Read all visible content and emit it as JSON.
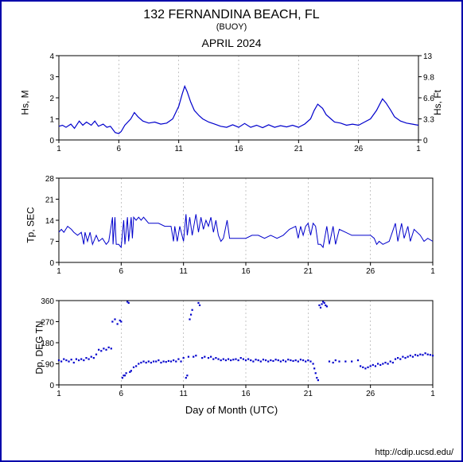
{
  "title_main": "132 FERNANDINA BEACH, FL",
  "title_sub": "(BUOY)",
  "month_title": "APRIL 2024",
  "xlabel": "Day of Month (UTC)",
  "credit": "http://cdip.ucsd.edu/",
  "chart_bg": "#ffffff",
  "axis_color": "#000000",
  "grid_color": "#a0a0a0",
  "series_color": "#0000cc",
  "xlim": [
    1,
    31
  ],
  "xticks": [
    1,
    6,
    11,
    16,
    21,
    26,
    31
  ],
  "xtick_labels": [
    "1",
    "6",
    "11",
    "16",
    "21",
    "26",
    "1"
  ],
  "grid_dash": "2,3",
  "panel1": {
    "type": "line",
    "ylabel": "Hs, M",
    "ylabel_right": "Hs, Ft",
    "ylim": [
      0,
      4
    ],
    "yticks": [
      0,
      1,
      2,
      3,
      4
    ],
    "yticks_right": [
      0,
      3.3,
      6.6,
      9.8,
      13
    ],
    "line_width": 1.2,
    "data": [
      [
        1.0,
        0.65
      ],
      [
        1.3,
        0.7
      ],
      [
        1.6,
        0.6
      ],
      [
        2.0,
        0.75
      ],
      [
        2.3,
        0.55
      ],
      [
        2.7,
        0.9
      ],
      [
        3.0,
        0.7
      ],
      [
        3.3,
        0.85
      ],
      [
        3.7,
        0.7
      ],
      [
        4.0,
        0.9
      ],
      [
        4.3,
        0.65
      ],
      [
        4.7,
        0.75
      ],
      [
        5.0,
        0.6
      ],
      [
        5.3,
        0.65
      ],
      [
        5.7,
        0.35
      ],
      [
        6.0,
        0.3
      ],
      [
        6.2,
        0.4
      ],
      [
        6.5,
        0.7
      ],
      [
        7.0,
        1.0
      ],
      [
        7.3,
        1.3
      ],
      [
        7.6,
        1.1
      ],
      [
        8.0,
        0.9
      ],
      [
        8.5,
        0.8
      ],
      [
        9.0,
        0.85
      ],
      [
        9.5,
        0.75
      ],
      [
        10.0,
        0.8
      ],
      [
        10.5,
        1.0
      ],
      [
        11.0,
        1.6
      ],
      [
        11.3,
        2.2
      ],
      [
        11.5,
        2.55
      ],
      [
        11.7,
        2.3
      ],
      [
        12.0,
        1.8
      ],
      [
        12.3,
        1.4
      ],
      [
        12.7,
        1.15
      ],
      [
        13.0,
        1.0
      ],
      [
        13.5,
        0.85
      ],
      [
        14.0,
        0.75
      ],
      [
        14.5,
        0.65
      ],
      [
        15.0,
        0.6
      ],
      [
        15.5,
        0.72
      ],
      [
        16.0,
        0.6
      ],
      [
        16.5,
        0.78
      ],
      [
        17.0,
        0.6
      ],
      [
        17.5,
        0.7
      ],
      [
        18.0,
        0.58
      ],
      [
        18.5,
        0.72
      ],
      [
        19.0,
        0.6
      ],
      [
        19.5,
        0.68
      ],
      [
        20.0,
        0.62
      ],
      [
        20.5,
        0.7
      ],
      [
        21.0,
        0.6
      ],
      [
        21.5,
        0.75
      ],
      [
        22.0,
        1.0
      ],
      [
        22.3,
        1.4
      ],
      [
        22.6,
        1.7
      ],
      [
        23.0,
        1.5
      ],
      [
        23.3,
        1.2
      ],
      [
        23.7,
        1.0
      ],
      [
        24.0,
        0.85
      ],
      [
        24.5,
        0.8
      ],
      [
        25.0,
        0.7
      ],
      [
        25.5,
        0.75
      ],
      [
        26.0,
        0.7
      ],
      [
        26.5,
        0.85
      ],
      [
        27.0,
        1.0
      ],
      [
        27.5,
        1.4
      ],
      [
        28.0,
        1.95
      ],
      [
        28.3,
        1.75
      ],
      [
        28.7,
        1.4
      ],
      [
        29.0,
        1.1
      ],
      [
        29.5,
        0.9
      ],
      [
        30.0,
        0.8
      ],
      [
        30.5,
        0.75
      ],
      [
        31.0,
        0.7
      ]
    ]
  },
  "panel2": {
    "type": "line",
    "ylabel": "Tp, SEC",
    "ylim": [
      0,
      28
    ],
    "yticks": [
      0,
      7,
      14,
      21,
      28
    ],
    "line_width": 1.0,
    "data": [
      [
        1.0,
        10
      ],
      [
        1.2,
        11
      ],
      [
        1.4,
        10
      ],
      [
        1.7,
        12
      ],
      [
        2.0,
        11
      ],
      [
        2.2,
        10
      ],
      [
        2.5,
        9
      ],
      [
        2.8,
        10
      ],
      [
        3.0,
        6
      ],
      [
        3.1,
        10
      ],
      [
        3.3,
        7
      ],
      [
        3.5,
        10
      ],
      [
        3.7,
        6
      ],
      [
        4.0,
        9
      ],
      [
        4.2,
        7
      ],
      [
        4.5,
        8
      ],
      [
        4.8,
        6
      ],
      [
        5.0,
        7
      ],
      [
        5.3,
        15
      ],
      [
        5.35,
        6
      ],
      [
        5.5,
        15
      ],
      [
        5.6,
        6
      ],
      [
        5.8,
        6
      ],
      [
        6.0,
        5
      ],
      [
        6.2,
        14
      ],
      [
        6.3,
        6
      ],
      [
        6.5,
        15
      ],
      [
        6.6,
        7
      ],
      [
        6.8,
        15
      ],
      [
        6.9,
        8
      ],
      [
        7.0,
        15
      ],
      [
        7.2,
        14
      ],
      [
        7.4,
        15
      ],
      [
        7.6,
        14
      ],
      [
        7.8,
        15
      ],
      [
        8.0,
        14
      ],
      [
        8.2,
        13
      ],
      [
        8.5,
        13
      ],
      [
        9.0,
        13
      ],
      [
        9.5,
        12
      ],
      [
        10.0,
        12
      ],
      [
        10.2,
        7
      ],
      [
        10.3,
        12
      ],
      [
        10.5,
        7
      ],
      [
        10.7,
        12
      ],
      [
        11.0,
        7
      ],
      [
        11.2,
        16
      ],
      [
        11.3,
        9
      ],
      [
        11.5,
        15
      ],
      [
        11.7,
        9
      ],
      [
        12.0,
        16
      ],
      [
        12.2,
        10
      ],
      [
        12.4,
        15
      ],
      [
        12.6,
        11
      ],
      [
        12.8,
        14
      ],
      [
        13.0,
        12
      ],
      [
        13.2,
        15
      ],
      [
        13.4,
        10
      ],
      [
        13.6,
        14
      ],
      [
        13.8,
        9
      ],
      [
        14.0,
        7
      ],
      [
        14.2,
        8
      ],
      [
        14.5,
        14
      ],
      [
        14.7,
        8
      ],
      [
        15.0,
        8
      ],
      [
        15.5,
        8
      ],
      [
        16.0,
        8
      ],
      [
        16.5,
        9
      ],
      [
        17.0,
        9
      ],
      [
        17.5,
        8
      ],
      [
        18.0,
        9
      ],
      [
        18.5,
        8
      ],
      [
        19.0,
        9
      ],
      [
        19.5,
        11
      ],
      [
        20.0,
        12
      ],
      [
        20.2,
        8
      ],
      [
        20.4,
        12
      ],
      [
        20.6,
        9
      ],
      [
        20.8,
        12
      ],
      [
        21.0,
        13
      ],
      [
        21.2,
        9
      ],
      [
        21.4,
        13
      ],
      [
        21.6,
        12
      ],
      [
        21.8,
        6
      ],
      [
        22.0,
        6
      ],
      [
        22.2,
        5
      ],
      [
        22.5,
        12
      ],
      [
        22.7,
        6
      ],
      [
        23.0,
        12
      ],
      [
        23.2,
        6
      ],
      [
        23.5,
        11
      ],
      [
        24.0,
        10
      ],
      [
        24.5,
        9
      ],
      [
        25.0,
        9
      ],
      [
        25.5,
        9
      ],
      [
        26.0,
        9
      ],
      [
        26.3,
        8
      ],
      [
        26.5,
        6
      ],
      [
        26.7,
        7
      ],
      [
        27.0,
        6
      ],
      [
        27.5,
        7
      ],
      [
        28.0,
        13
      ],
      [
        28.2,
        7
      ],
      [
        28.5,
        13
      ],
      [
        28.7,
        8
      ],
      [
        29.0,
        12
      ],
      [
        29.2,
        7
      ],
      [
        29.5,
        11
      ],
      [
        30.0,
        9
      ],
      [
        30.3,
        7
      ],
      [
        30.6,
        8
      ],
      [
        31.0,
        7
      ]
    ]
  },
  "panel3": {
    "type": "scatter",
    "ylabel": "Dp, DEG TN",
    "ylim": [
      0,
      360
    ],
    "yticks": [
      0,
      90,
      180,
      270,
      360
    ],
    "marker_size": 2.2,
    "data": [
      [
        1.0,
        105
      ],
      [
        1.2,
        100
      ],
      [
        1.4,
        110
      ],
      [
        1.6,
        105
      ],
      [
        1.8,
        100
      ],
      [
        2.0,
        108
      ],
      [
        2.2,
        95
      ],
      [
        2.4,
        110
      ],
      [
        2.6,
        105
      ],
      [
        2.8,
        110
      ],
      [
        3.0,
        105
      ],
      [
        3.2,
        115
      ],
      [
        3.4,
        110
      ],
      [
        3.6,
        120
      ],
      [
        3.8,
        115
      ],
      [
        4.0,
        130
      ],
      [
        4.2,
        150
      ],
      [
        4.4,
        145
      ],
      [
        4.6,
        155
      ],
      [
        4.8,
        150
      ],
      [
        5.0,
        160
      ],
      [
        5.2,
        155
      ],
      [
        5.3,
        270
      ],
      [
        5.5,
        280
      ],
      [
        5.7,
        260
      ],
      [
        5.9,
        275
      ],
      [
        6.0,
        270
      ],
      [
        6.1,
        30
      ],
      [
        6.2,
        40
      ],
      [
        6.3,
        40
      ],
      [
        6.4,
        50
      ],
      [
        6.5,
        355
      ],
      [
        6.6,
        350
      ],
      [
        6.7,
        55
      ],
      [
        6.8,
        60
      ],
      [
        7.0,
        75
      ],
      [
        7.2,
        80
      ],
      [
        7.4,
        90
      ],
      [
        7.6,
        95
      ],
      [
        7.8,
        100
      ],
      [
        8.0,
        95
      ],
      [
        8.2,
        100
      ],
      [
        8.4,
        95
      ],
      [
        8.6,
        100
      ],
      [
        8.8,
        100
      ],
      [
        9.0,
        105
      ],
      [
        9.2,
        95
      ],
      [
        9.4,
        100
      ],
      [
        9.6,
        98
      ],
      [
        9.8,
        102
      ],
      [
        10.0,
        100
      ],
      [
        10.2,
        105
      ],
      [
        10.4,
        100
      ],
      [
        10.6,
        110
      ],
      [
        10.8,
        100
      ],
      [
        11.0,
        115
      ],
      [
        11.2,
        30
      ],
      [
        11.3,
        40
      ],
      [
        11.4,
        120
      ],
      [
        11.5,
        280
      ],
      [
        11.6,
        300
      ],
      [
        11.7,
        320
      ],
      [
        11.8,
        120
      ],
      [
        12.0,
        125
      ],
      [
        12.2,
        350
      ],
      [
        12.3,
        340
      ],
      [
        12.5,
        115
      ],
      [
        12.7,
        120
      ],
      [
        13.0,
        115
      ],
      [
        13.2,
        120
      ],
      [
        13.4,
        110
      ],
      [
        13.6,
        115
      ],
      [
        13.8,
        110
      ],
      [
        14.0,
        105
      ],
      [
        14.2,
        110
      ],
      [
        14.4,
        105
      ],
      [
        14.6,
        110
      ],
      [
        14.8,
        105
      ],
      [
        15.0,
        108
      ],
      [
        15.2,
        110
      ],
      [
        15.4,
        105
      ],
      [
        15.6,
        115
      ],
      [
        15.8,
        110
      ],
      [
        16.0,
        105
      ],
      [
        16.2,
        110
      ],
      [
        16.4,
        105
      ],
      [
        16.6,
        100
      ],
      [
        16.8,
        108
      ],
      [
        17.0,
        105
      ],
      [
        17.2,
        100
      ],
      [
        17.4,
        108
      ],
      [
        17.6,
        105
      ],
      [
        17.8,
        100
      ],
      [
        18.0,
        105
      ],
      [
        18.2,
        102
      ],
      [
        18.4,
        108
      ],
      [
        18.6,
        105
      ],
      [
        18.8,
        100
      ],
      [
        19.0,
        105
      ],
      [
        19.2,
        100
      ],
      [
        19.4,
        108
      ],
      [
        19.6,
        105
      ],
      [
        19.8,
        102
      ],
      [
        20.0,
        105
      ],
      [
        20.2,
        100
      ],
      [
        20.4,
        108
      ],
      [
        20.6,
        105
      ],
      [
        20.8,
        100
      ],
      [
        21.0,
        105
      ],
      [
        21.2,
        100
      ],
      [
        21.4,
        90
      ],
      [
        21.5,
        70
      ],
      [
        21.6,
        50
      ],
      [
        21.7,
        30
      ],
      [
        21.8,
        20
      ],
      [
        21.9,
        340
      ],
      [
        22.0,
        330
      ],
      [
        22.1,
        345
      ],
      [
        22.2,
        355
      ],
      [
        22.3,
        350
      ],
      [
        22.4,
        340
      ],
      [
        22.5,
        335
      ],
      [
        22.7,
        100
      ],
      [
        23.0,
        95
      ],
      [
        23.2,
        105
      ],
      [
        23.5,
        100
      ],
      [
        24.0,
        100
      ],
      [
        24.5,
        100
      ],
      [
        25.0,
        105
      ],
      [
        25.2,
        80
      ],
      [
        25.4,
        75
      ],
      [
        25.6,
        70
      ],
      [
        25.8,
        75
      ],
      [
        26.0,
        80
      ],
      [
        26.2,
        85
      ],
      [
        26.4,
        80
      ],
      [
        26.6,
        90
      ],
      [
        26.8,
        85
      ],
      [
        27.0,
        90
      ],
      [
        27.2,
        95
      ],
      [
        27.4,
        90
      ],
      [
        27.6,
        100
      ],
      [
        27.8,
        95
      ],
      [
        28.0,
        110
      ],
      [
        28.2,
        115
      ],
      [
        28.4,
        110
      ],
      [
        28.6,
        120
      ],
      [
        28.8,
        115
      ],
      [
        29.0,
        120
      ],
      [
        29.2,
        125
      ],
      [
        29.4,
        120
      ],
      [
        29.6,
        128
      ],
      [
        29.8,
        125
      ],
      [
        30.0,
        130
      ],
      [
        30.2,
        128
      ],
      [
        30.4,
        135
      ],
      [
        30.6,
        130
      ],
      [
        30.8,
        128
      ],
      [
        31.0,
        125
      ]
    ]
  },
  "fontsize_title": 16,
  "fontsize_sub": 11,
  "fontsize_month": 14,
  "fontsize_tick": 10,
  "fontsize_label": 12
}
